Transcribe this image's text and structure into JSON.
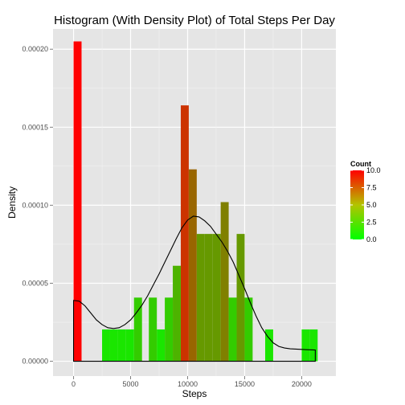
{
  "chart_data": {
    "type": "bar",
    "title": "Histogram (With Density Plot) of Total Steps Per Day",
    "xlabel": "Steps",
    "ylabel": "Density",
    "xlim": [
      -1800,
      23000
    ],
    "ylim": [
      -9.5e-06,
      0.000213
    ],
    "x_ticks": [
      0,
      5000,
      10000,
      15000,
      20000
    ],
    "x_tick_labels": [
      "0",
      "5000",
      "10000",
      "15000",
      "20000"
    ],
    "y_ticks": [
      0,
      5e-05,
      0.0001,
      0.00015,
      0.0002
    ],
    "y_tick_labels": [
      "0.00000",
      "0.00005",
      "0.00010",
      "0.00015",
      "0.00020"
    ],
    "grid": true,
    "panel_background": "#e5e5e5",
    "grid_color": "#ffffff",
    "bin_width": 700,
    "bins": [
      {
        "x0": 0,
        "x1": 700,
        "density": 0.000205,
        "count": 10
      },
      {
        "x0": 2500,
        "x1": 3200,
        "density": 2.04e-05,
        "count": 1
      },
      {
        "x0": 3200,
        "x1": 3900,
        "density": 2.04e-05,
        "count": 1
      },
      {
        "x0": 3900,
        "x1": 4600,
        "density": 2.04e-05,
        "count": 1
      },
      {
        "x0": 4600,
        "x1": 5300,
        "density": 2.04e-05,
        "count": 1
      },
      {
        "x0": 5300,
        "x1": 6000,
        "density": 4.08e-05,
        "count": 2
      },
      {
        "x0": 6600,
        "x1": 7300,
        "density": 4.08e-05,
        "count": 2
      },
      {
        "x0": 7300,
        "x1": 8000,
        "density": 2.04e-05,
        "count": 1
      },
      {
        "x0": 8000,
        "x1": 8700,
        "density": 4.08e-05,
        "count": 2
      },
      {
        "x0": 8700,
        "x1": 9400,
        "density": 6.12e-05,
        "count": 3
      },
      {
        "x0": 9400,
        "x1": 10100,
        "density": 0.000164,
        "count": 8
      },
      {
        "x0": 10100,
        "x1": 10800,
        "density": 0.000123,
        "count": 6
      },
      {
        "x0": 10800,
        "x1": 11500,
        "density": 8.16e-05,
        "count": 4
      },
      {
        "x0": 11500,
        "x1": 12200,
        "density": 8.16e-05,
        "count": 4
      },
      {
        "x0": 12200,
        "x1": 12900,
        "density": 8.16e-05,
        "count": 4
      },
      {
        "x0": 12900,
        "x1": 13600,
        "density": 0.000102,
        "count": 5
      },
      {
        "x0": 13600,
        "x1": 14300,
        "density": 4.08e-05,
        "count": 2
      },
      {
        "x0": 14300,
        "x1": 15000,
        "density": 8.16e-05,
        "count": 4
      },
      {
        "x0": 15000,
        "x1": 15700,
        "density": 4.08e-05,
        "count": 2
      },
      {
        "x0": 16800,
        "x1": 17500,
        "density": 2.04e-05,
        "count": 1
      },
      {
        "x0": 20000,
        "x1": 20700,
        "density": 2.04e-05,
        "count": 1
      },
      {
        "x0": 20700,
        "x1": 21400,
        "density": 2.04e-05,
        "count": 1
      }
    ],
    "density_curve": {
      "x": [
        0,
        500,
        1000,
        1500,
        2000,
        2500,
        3000,
        3500,
        4000,
        4500,
        5000,
        5500,
        6000,
        6500,
        7000,
        7500,
        8000,
        8500,
        9000,
        9500,
        10000,
        10500,
        11000,
        11500,
        12000,
        12500,
        13000,
        13500,
        14000,
        14500,
        15000,
        15500,
        16000,
        16500,
        17000,
        17500,
        18000,
        18500,
        19000,
        19500,
        20000,
        20500,
        21194
      ],
      "y": [
        3.9e-05,
        3.85e-05,
        3.55e-05,
        3.1e-05,
        2.65e-05,
        2.35e-05,
        2.15e-05,
        2.1e-05,
        2.15e-05,
        2.35e-05,
        2.65e-05,
        3.1e-05,
        3.6e-05,
        4.2e-05,
        4.9e-05,
        5.6e-05,
        6.35e-05,
        7.1e-05,
        7.85e-05,
        8.55e-05,
        9.05e-05,
        9.3e-05,
        9.25e-05,
        9e-05,
        8.65e-05,
        8.15e-05,
        7.65e-05,
        7.05e-05,
        6.35e-05,
        5.5e-05,
        4.65e-05,
        3.75e-05,
        2.9e-05,
        2.15e-05,
        1.6e-05,
        1.18e-05,
        9.5e-06,
        8.5e-06,
        8e-06,
        7.8e-06,
        7.6e-06,
        7.4e-06,
        7.2e-06
      ]
    },
    "legend": {
      "title": "Count",
      "placement": "right",
      "type": "colorbar",
      "min": 0,
      "max": 10,
      "ticks": [
        0,
        2.5,
        5,
        7.5,
        10
      ],
      "tick_labels": [
        "0.0",
        "2.5",
        "5.0",
        "7.5",
        "10.0"
      ],
      "color_low": "#00ff00",
      "color_high": "#ff0000"
    }
  }
}
